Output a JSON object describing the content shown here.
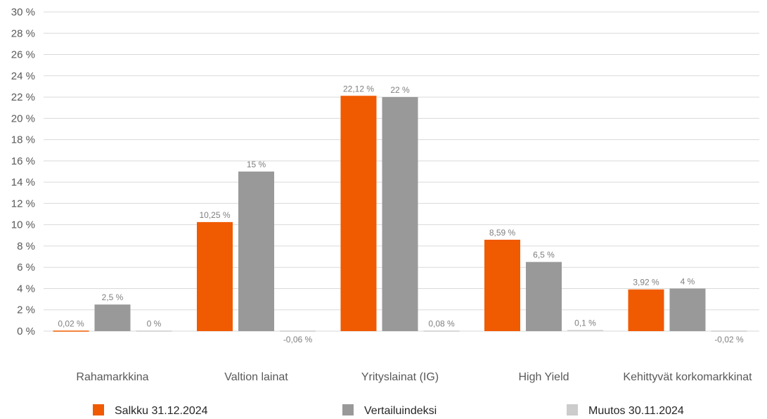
{
  "chart_data": {
    "type": "bar",
    "title": "",
    "xlabel": "",
    "ylabel": "",
    "ylim": [
      0,
      30
    ],
    "ytick_step": 2,
    "ytick_suffix": " %",
    "grid": true,
    "legend_position": "bottom",
    "categories": [
      "Rahamarkkina",
      "Valtion lainat",
      "Yrityslainat (IG)",
      "High Yield",
      "Kehittyvät korkomarkkinat"
    ],
    "series": [
      {
        "name": "Salkku 31.12.2024",
        "color": "#f05a00",
        "values": [
          0.02,
          10.25,
          22.12,
          8.59,
          3.92
        ],
        "labels": [
          "0,02 %",
          "10,25 %",
          "22,12 %",
          "8,59 %",
          "3,92 %"
        ]
      },
      {
        "name": "Vertailuindeksi",
        "color": "#999999",
        "values": [
          2.5,
          15,
          22,
          6.5,
          4
        ],
        "labels": [
          "2,5 %",
          "15 %",
          "22 %",
          "6,5 %",
          "4 %"
        ]
      },
      {
        "name": "Muutos 30.11.2024",
        "color": "#cccccc",
        "values": [
          0,
          -0.06,
          0.08,
          0.1,
          -0.02
        ],
        "labels": [
          "0 %",
          "-0,06 %",
          "0,08 %",
          "0,1 %",
          "-0,02 %"
        ]
      }
    ]
  }
}
